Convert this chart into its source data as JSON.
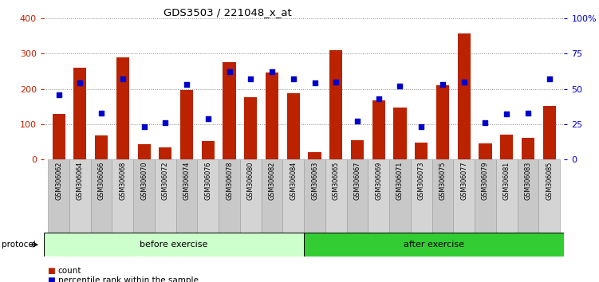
{
  "title": "GDS3503 / 221048_x_at",
  "samples": [
    "GSM306062",
    "GSM306064",
    "GSM306066",
    "GSM306068",
    "GSM306070",
    "GSM306072",
    "GSM306074",
    "GSM306076",
    "GSM306078",
    "GSM306080",
    "GSM306082",
    "GSM306084",
    "GSM306063",
    "GSM306065",
    "GSM306067",
    "GSM306069",
    "GSM306071",
    "GSM306073",
    "GSM306075",
    "GSM306077",
    "GSM306079",
    "GSM306081",
    "GSM306083",
    "GSM306085"
  ],
  "count_values": [
    128,
    260,
    68,
    290,
    42,
    33,
    197,
    52,
    275,
    177,
    247,
    188,
    20,
    310,
    54,
    168,
    147,
    48,
    210,
    358,
    46,
    70,
    60,
    152
  ],
  "percentile_values": [
    46,
    54,
    33,
    57,
    23,
    26,
    53,
    29,
    62,
    57,
    62,
    57,
    54,
    55,
    27,
    43,
    52,
    23,
    53,
    55,
    26,
    32,
    33,
    57
  ],
  "before_exercise_count": 12,
  "after_exercise_count": 12,
  "bar_color": "#bb2200",
  "dot_color": "#0000cc",
  "before_color": "#ccffcc",
  "after_color": "#33cc33",
  "tick_bg_color": "#c8c8c8",
  "ylim_left": [
    0,
    400
  ],
  "ylim_right": [
    0,
    100
  ],
  "yticks_left": [
    0,
    100,
    200,
    300,
    400
  ],
  "yticks_right": [
    0,
    25,
    50,
    75,
    100
  ],
  "ytick_labels_right": [
    "0",
    "25",
    "50",
    "75",
    "100%"
  ],
  "grid_color": "#888888",
  "legend_count_label": "count",
  "legend_percentile_label": "percentile rank within the sample",
  "before_label": "before exercise",
  "after_label": "after exercise",
  "protocol_label": "protocol"
}
